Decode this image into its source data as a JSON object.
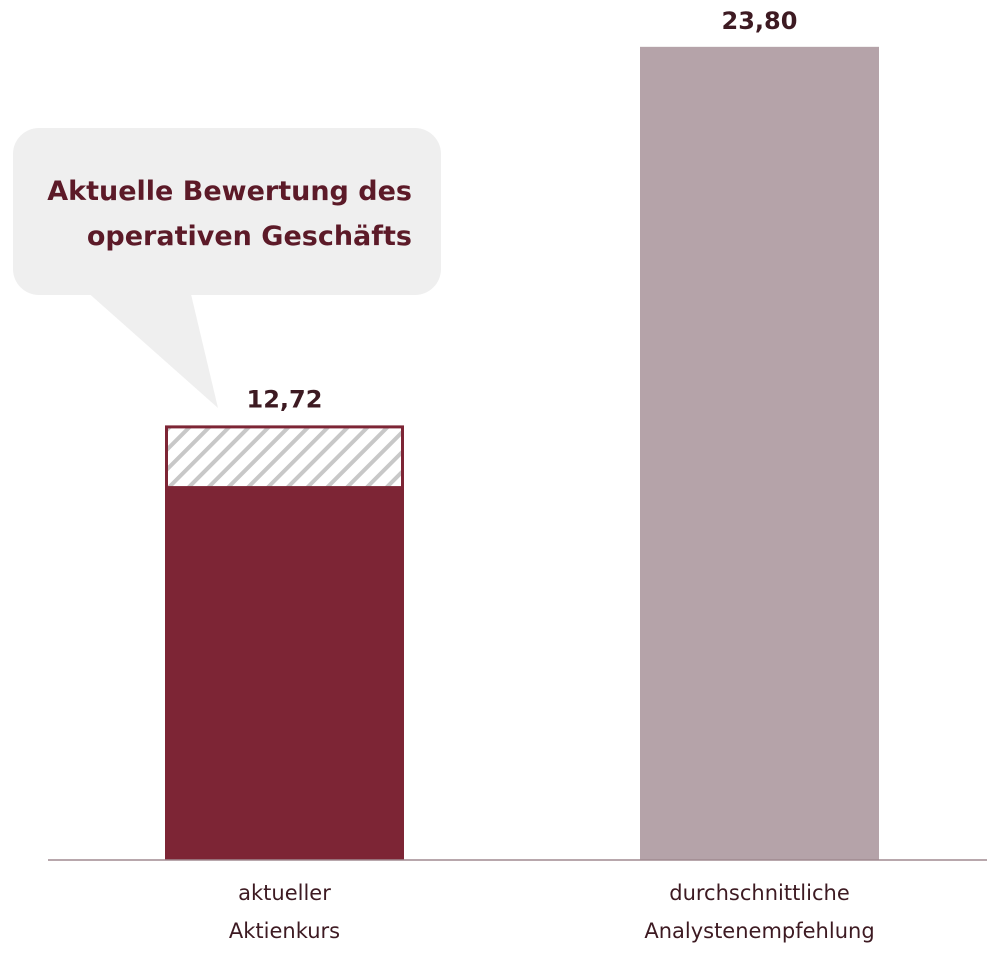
{
  "chart_data": {
    "type": "bar",
    "categories": [
      [
        "aktueller",
        "Aktienkurs"
      ],
      [
        "durchschnittliche",
        "Analystenempfehlung"
      ]
    ],
    "values": [
      12.72,
      23.8
    ],
    "value_labels": [
      "12,72",
      "23,80"
    ],
    "stacked_first_bar": {
      "solid_value": 10.9,
      "hatched_value": 1.82
    },
    "ylim": [
      0,
      24
    ],
    "grid": false,
    "annotation": {
      "lines": [
        "Aktuelle Bewertung des",
        "operativen Geschäfts"
      ],
      "points_to": "aktueller Aktienkurs"
    },
    "colors": {
      "bar1": "#7d2535",
      "bar2": "#b5a3a9",
      "hatch": "#c8c8c8",
      "bubble": "#efefef",
      "axis": "#a08a90",
      "text": "#3d1a22",
      "annotation_text": "#5c1a28"
    }
  }
}
